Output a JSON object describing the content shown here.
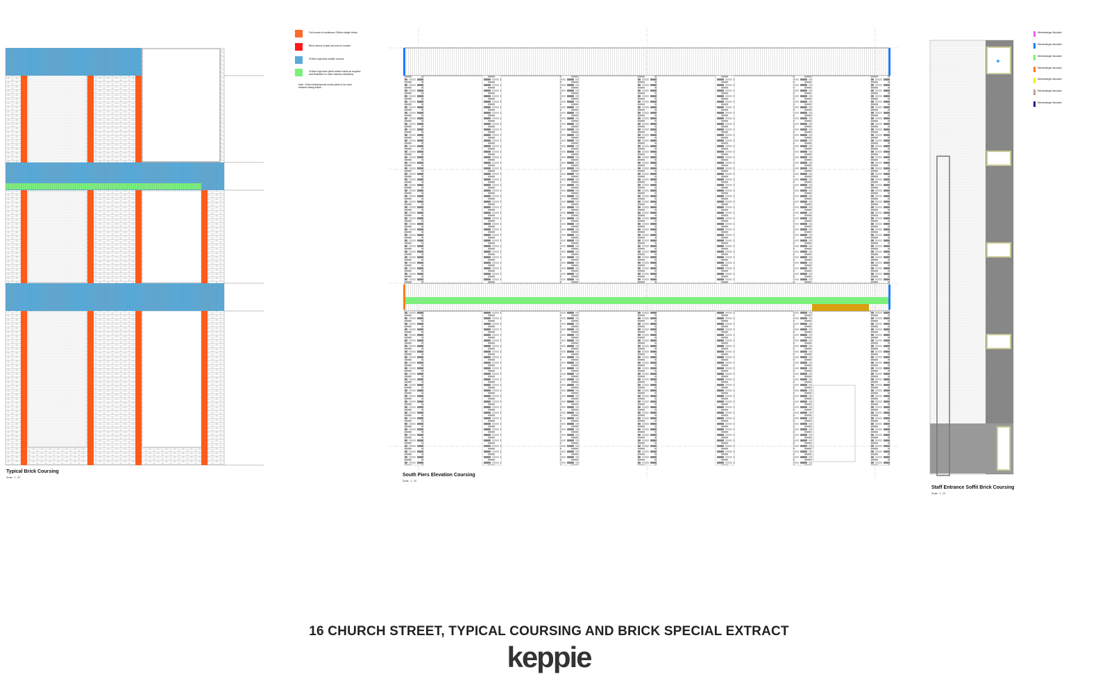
{
  "drawings": [
    {
      "title": "Typical Brick Coursing",
      "scale": "Scale - 1 : 20"
    },
    {
      "title": "South Piers Elevation Coursing",
      "scale": "Scale - 1 : 20"
    },
    {
      "title": "Staff Entrance Soffit Brick Coursing",
      "scale": "Scale - 1 : 20"
    }
  ],
  "legend_left": [
    {
      "color": "#ff6a2a",
      "text": "Full course of continuous 215mm length bricks"
    },
    {
      "color": "#ff1a1a",
      "text": "Brick returns to start and end of courses"
    },
    {
      "color": "#5aaad8",
      "text": "215mm high brick soldier courses"
    },
    {
      "color": "#7cf07c",
      "text": "215mm high brick plinth soldier bricks as required and illustrated on main masonry elevations"
    }
  ],
  "legend_note": "Note: 10mm bed/perpends mortar joints to be used between facing bricks.",
  "legend_right": [
    {
      "color": "#f060f0",
      "text": "Wienerberger Moulded"
    },
    {
      "color": "#1a7aff",
      "text": "Wienerberger Moulded"
    },
    {
      "color": "#7cf07c",
      "text": "Wienerberger Moulded"
    },
    {
      "color": "#ff7a1a",
      "text": "Wienerberger Moulded"
    },
    {
      "color": "#f0f020",
      "text": "Wienerberger Moulded"
    },
    {
      "color": "#c0a090",
      "text": "Wienerberger Moulded"
    },
    {
      "color": "#2a1a80",
      "text": "Wienerberger Moulded"
    }
  ],
  "sheet_title": "16 CHURCH STREET, TYPICAL COURSING AND BRICK SPECIAL EXTRACT",
  "logo": "keppie"
}
